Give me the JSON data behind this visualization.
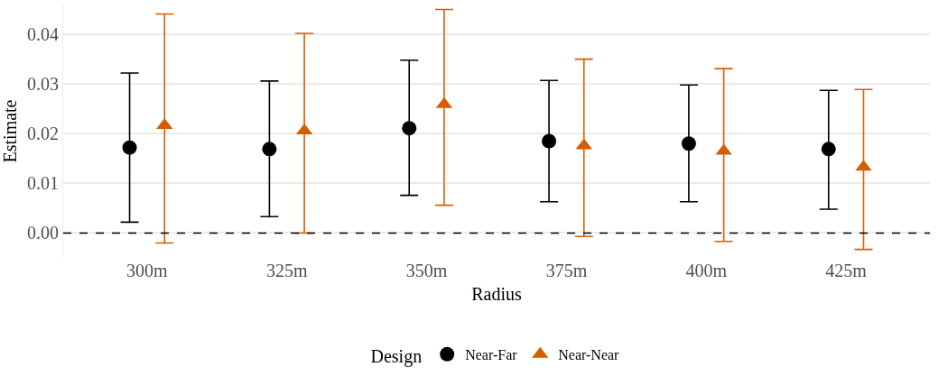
{
  "chart_data": {
    "type": "scatter",
    "xlabel": "Radius",
    "ylabel": "Estimate",
    "legend_title": "Design",
    "categories": [
      "300m",
      "325m",
      "350m",
      "375m",
      "400m",
      "425m"
    ],
    "series": [
      {
        "name": "Near-Far",
        "color": "#000000",
        "marker": "circle",
        "values": [
          0.0172,
          0.0169,
          0.0211,
          0.0185,
          0.018,
          0.0169
        ],
        "errors": [
          [
            0.0022,
            0.0322
          ],
          [
            0.0033,
            0.0306
          ],
          [
            0.0076,
            0.0348
          ],
          [
            0.0063,
            0.0307
          ],
          [
            0.0063,
            0.0298
          ],
          [
            0.0048,
            0.0287
          ]
        ]
      },
      {
        "name": "Near-Near",
        "color": "#d55e00",
        "marker": "triangle",
        "values": [
          0.0217,
          0.0206,
          0.0259,
          0.0176,
          0.0165,
          0.0133
        ],
        "errors": [
          [
            -0.002,
            0.0441
          ],
          [
            0.0,
            0.0402
          ],
          [
            0.0056,
            0.045
          ],
          [
            -0.0007,
            0.035
          ],
          [
            -0.0017,
            0.0331
          ],
          [
            -0.0033,
            0.0289
          ]
        ]
      }
    ],
    "ylim": [
      -0.005,
      0.046
    ],
    "yticks": [
      {
        "value": 0,
        "label": "0.00"
      },
      {
        "value": 0.01,
        "label": "0.01"
      },
      {
        "value": 0.02,
        "label": "0.02"
      },
      {
        "value": 0.03,
        "label": "0.03"
      },
      {
        "value": 0.04,
        "label": "0.04"
      }
    ],
    "grid": "y",
    "legend": "bottom",
    "ref_lines": [
      {
        "axis": "y",
        "value": 0,
        "color": "#000000",
        "line_style": "dashed"
      }
    ]
  }
}
